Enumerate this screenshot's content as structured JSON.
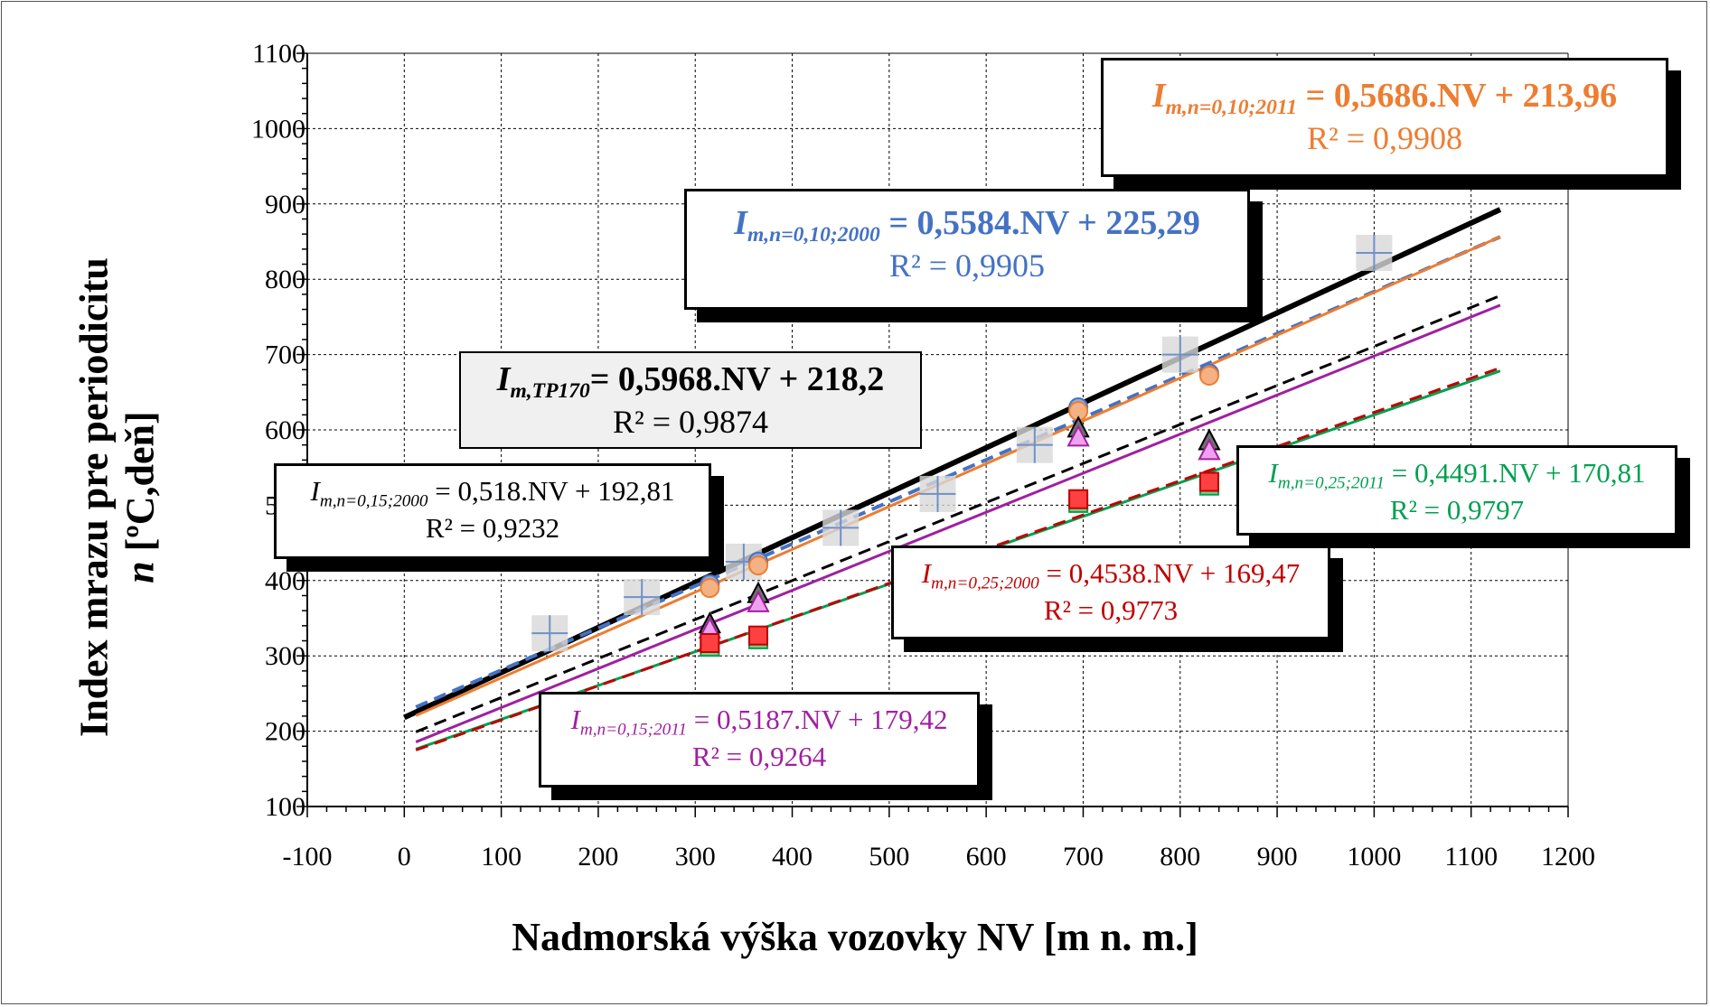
{
  "chart_data": {
    "type": "scatter",
    "xlabel": "Nadmorská výška vozovky NV [m n. m.]",
    "ylabel_line1": "Index mrazu pre periodicitu",
    "ylabel_line2_sym": "n",
    "ylabel_line2_rest": " [ºC,deň]",
    "xlim": [
      -100,
      1200
    ],
    "ylim": [
      100,
      1100
    ],
    "xticks": [
      "-100",
      "0",
      "100",
      "200",
      "300",
      "400",
      "500",
      "600",
      "700",
      "800",
      "900",
      "1000",
      "1100",
      "1200"
    ],
    "yticks": [
      "100",
      "200",
      "300",
      "400",
      "500",
      "600",
      "700",
      "800",
      "900",
      "1000",
      "1100"
    ],
    "grid": true,
    "trendlines": [
      {
        "key": "tp170",
        "slope": 0.5968,
        "intercept": 218.2,
        "x_range": [
          0,
          1130
        ],
        "color": "#000000",
        "dash": "solid",
        "width": 6
      },
      {
        "key": "n010_2000",
        "slope": 0.5584,
        "intercept": 225.29,
        "x_range": [
          12,
          1130
        ],
        "color": "#4472C4",
        "dash": "dash",
        "width": 4
      },
      {
        "key": "n010_2011",
        "slope": 0.5686,
        "intercept": 213.96,
        "x_range": [
          12,
          1130
        ],
        "color": "#ED7D31",
        "dash": "solid",
        "width": 3
      },
      {
        "key": "n015_2000",
        "slope": 0.518,
        "intercept": 192.81,
        "x_range": [
          12,
          1130
        ],
        "color": "#000000",
        "dash": "dash",
        "width": 3
      },
      {
        "key": "n015_2011",
        "slope": 0.5187,
        "intercept": 179.42,
        "x_range": [
          12,
          1130
        ],
        "color": "#A020A0",
        "dash": "solid",
        "width": 3
      },
      {
        "key": "n025_2011",
        "slope": 0.4491,
        "intercept": 170.81,
        "x_range": [
          12,
          1130
        ],
        "color": "#00A050",
        "dash": "solid",
        "width": 3
      },
      {
        "key": "n025_2000",
        "slope": 0.4538,
        "intercept": 169.47,
        "x_range": [
          12,
          1130
        ],
        "color": "#C00000",
        "dash": "dash",
        "width": 3
      }
    ],
    "series": [
      {
        "key": "tp170_pts",
        "marker": "plus",
        "color": "#7090C8",
        "fill": "#d8d8d8",
        "points": [
          [
            150,
            330
          ],
          [
            245,
            378
          ],
          [
            350,
            425
          ],
          [
            450,
            470
          ],
          [
            550,
            515
          ],
          [
            650,
            580
          ],
          [
            800,
            700
          ],
          [
            1000,
            835
          ]
        ]
      },
      {
        "key": "n010_2000_pts",
        "marker": "circle",
        "color": "#4472C4",
        "fill": "#8FAADC",
        "points": [
          [
            315,
            395
          ],
          [
            365,
            425
          ],
          [
            695,
            630
          ],
          [
            830,
            675
          ]
        ]
      },
      {
        "key": "n010_2011_pts",
        "marker": "circle",
        "color": "#ED7D31",
        "fill": "#F4B183",
        "points": [
          [
            315,
            390
          ],
          [
            365,
            420
          ],
          [
            695,
            625
          ],
          [
            830,
            672
          ]
        ]
      },
      {
        "key": "n015_2000_pts",
        "marker": "triangle",
        "color": "#000000",
        "fill": "#707070",
        "points": [
          [
            315,
            342
          ],
          [
            365,
            382
          ],
          [
            695,
            602
          ],
          [
            830,
            585
          ]
        ]
      },
      {
        "key": "n015_2011_pts",
        "marker": "triangle",
        "color": "#A020A0",
        "fill": "#F0A0F0",
        "points": [
          [
            315,
            335
          ],
          [
            365,
            370
          ],
          [
            695,
            590
          ],
          [
            830,
            572
          ]
        ]
      },
      {
        "key": "n025_2011_pts",
        "marker": "square",
        "color": "#00A050",
        "fill": "#80D080",
        "points": [
          [
            315,
            312
          ],
          [
            365,
            322
          ],
          [
            695,
            503
          ],
          [
            830,
            526
          ]
        ]
      },
      {
        "key": "n025_2000_pts",
        "marker": "square",
        "color": "#C00000",
        "fill": "#FF4040",
        "points": [
          [
            315,
            317
          ],
          [
            365,
            327
          ],
          [
            695,
            508
          ],
          [
            830,
            531
          ]
        ]
      }
    ],
    "equations": {
      "n010_2011": {
        "sym": "I",
        "sub": "m,n=0,10;2011",
        "text": " = 0,5686.NV + 213,96",
        "r2": "R² = 0,9908",
        "color": "#ED7D31"
      },
      "n010_2000": {
        "sym": "I",
        "sub": "m,n=0,10;2000",
        "text": " = 0,5584.NV + 225,29",
        "r2": "R² = 0,9905",
        "color": "#4472C4"
      },
      "tp170": {
        "sym": "I",
        "sub": "m,TP170",
        "text": "= 0,5968.NV + 218,2",
        "r2": "R² = 0,9874",
        "color": "#000000"
      },
      "n015_2000": {
        "sym": "I",
        "sub": "m,n=0,15;2000",
        "text": " = 0,518.NV + 192,81",
        "r2": "R² = 0,9232",
        "color": "#000000"
      },
      "n025_2011": {
        "sym": "I",
        "sub": "m,n=0,25;2011",
        "text": " = 0,4491.NV + 170,81",
        "r2": "R² = 0,9797",
        "color": "#00A050"
      },
      "n025_2000": {
        "sym": "I",
        "sub": "m,n=0,25;2000",
        "text": " = 0,4538.NV + 169,47",
        "r2": "R² = 0,9773",
        "color": "#C00000"
      },
      "n015_2011": {
        "sym": "I",
        "sub": "m,n=0,15;2011",
        "text": " = 0,5187.NV + 179,42",
        "r2": "R² = 0,9264",
        "color": "#A020A0"
      }
    }
  }
}
